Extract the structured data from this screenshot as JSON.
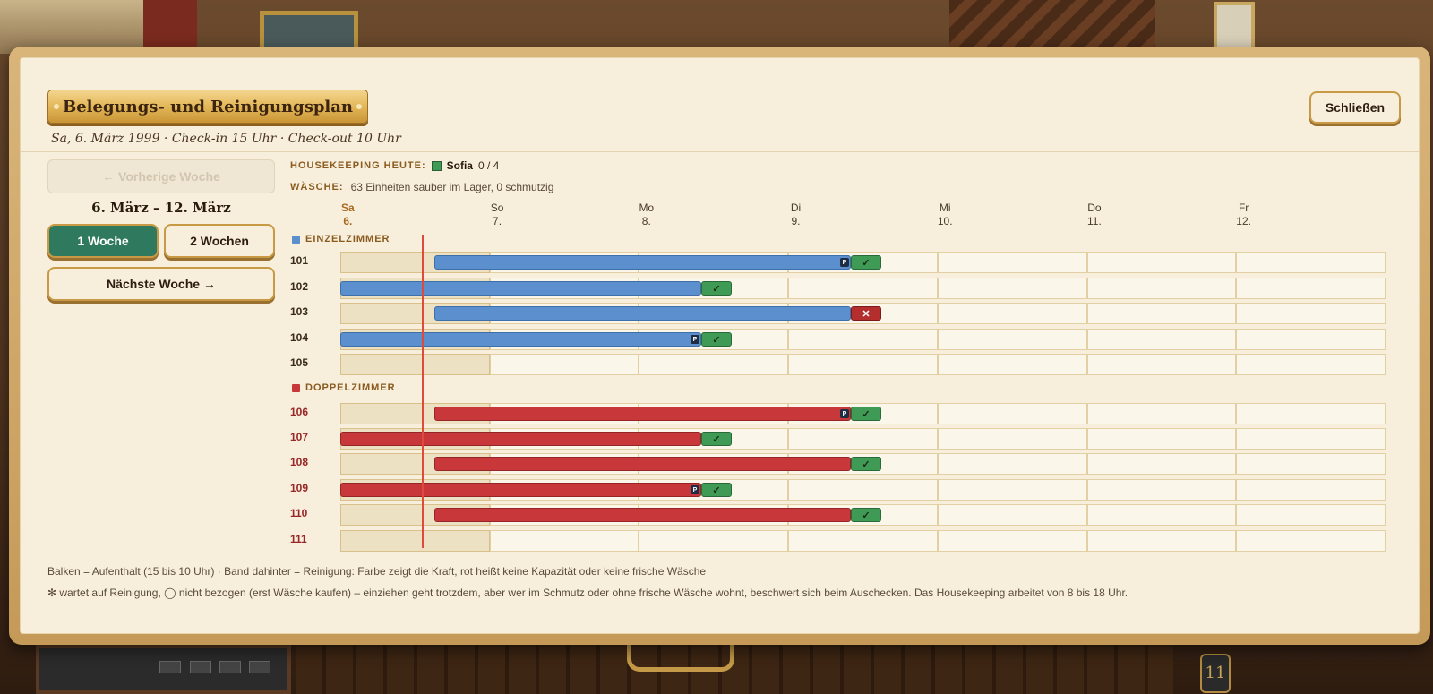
{
  "dialog": {
    "title": "Belegungs- und Reinigungsplan",
    "subtitle": "Sa, 6. März 1999 · Check-in 15 Uhr · Check-out 10 Uhr",
    "close_label": "Schließen"
  },
  "nav": {
    "prev_label": "← Vorherige Woche",
    "week_range": "6. März – 12. März",
    "mode_1": "1 Woche",
    "mode_2": "2 Wochen",
    "next_label": "Nächste Woche →"
  },
  "housekeeping": {
    "label": "HOUSEKEEPING HEUTE:",
    "name": "Sofia",
    "count": "0 / 4",
    "color": "#3f9a55"
  },
  "waesche": {
    "label": "WÄSCHE:",
    "text": "63 Einheiten sauber im Lager, 0 schmutzig"
  },
  "days": [
    {
      "name": "Sa",
      "date": "6."
    },
    {
      "name": "So",
      "date": "7."
    },
    {
      "name": "Mo",
      "date": "8."
    },
    {
      "name": "Di",
      "date": "9."
    },
    {
      "name": "Mi",
      "date": "10."
    },
    {
      "name": "Do",
      "date": "11."
    },
    {
      "name": "Fr",
      "date": "12."
    }
  ],
  "categories": {
    "single": {
      "label": "EINZELZIMMER",
      "color": "#5b8fcd"
    },
    "double": {
      "label": "DOPPELZIMMER",
      "color": "#c8383a"
    }
  },
  "rooms": [
    {
      "number": "101",
      "type": "single",
      "stay_from": "Sa 6.",
      "stay_to": "Di 9.",
      "p": true,
      "cleaning": "✓"
    },
    {
      "number": "102",
      "type": "single",
      "stay_from": "vor Sa 6.",
      "stay_to": "Mo 8.",
      "p": false,
      "cleaning": "✓"
    },
    {
      "number": "103",
      "type": "single",
      "stay_from": "Sa 6.",
      "stay_to": "Di 9.",
      "p": false,
      "cleaning": "✕"
    },
    {
      "number": "104",
      "type": "single",
      "stay_from": "vor Sa 6.",
      "stay_to": "Mo 8.",
      "p": true,
      "cleaning": "✓"
    },
    {
      "number": "105",
      "type": "single",
      "stay_from": "",
      "stay_to": "",
      "p": false,
      "cleaning": ""
    },
    {
      "number": "106",
      "type": "double",
      "stay_from": "Sa 6.",
      "stay_to": "Di 9.",
      "p": true,
      "cleaning": "✓"
    },
    {
      "number": "107",
      "type": "double",
      "stay_from": "vor Sa 6.",
      "stay_to": "Mo 8.",
      "p": false,
      "cleaning": "✓"
    },
    {
      "number": "108",
      "type": "double",
      "stay_from": "Sa 6.",
      "stay_to": "Di 9.",
      "p": false,
      "cleaning": "✓"
    },
    {
      "number": "109",
      "type": "double",
      "stay_from": "vor Sa 6.",
      "stay_to": "Mo 8.",
      "p": true,
      "cleaning": "✓"
    },
    {
      "number": "110",
      "type": "double",
      "stay_from": "Sa 6.",
      "stay_to": "Di 9.",
      "p": false,
      "cleaning": "✓"
    },
    {
      "number": "111",
      "type": "double",
      "stay_from": "",
      "stay_to": "",
      "p": false,
      "cleaning": ""
    }
  ],
  "p_marker": "P",
  "legend": {
    "line1": "Balken = Aufenthalt (15 bis 10 Uhr) · Band dahinter = Reinigung: Farbe zeigt die Kraft, rot heißt keine Kapazität oder keine frische Wäsche",
    "line2": "✻ wartet auf Reinigung, ◯ nicht bezogen (erst Wäsche kaufen) – einziehen geht trotzdem, aber wer im Schmutz oder ohne frische Wäsche wohnt, beschwert sich beim Auschecken. Das Housekeeping arbeitet von 8 bis 18 Uhr."
  },
  "background": {
    "key_tag": "11"
  }
}
